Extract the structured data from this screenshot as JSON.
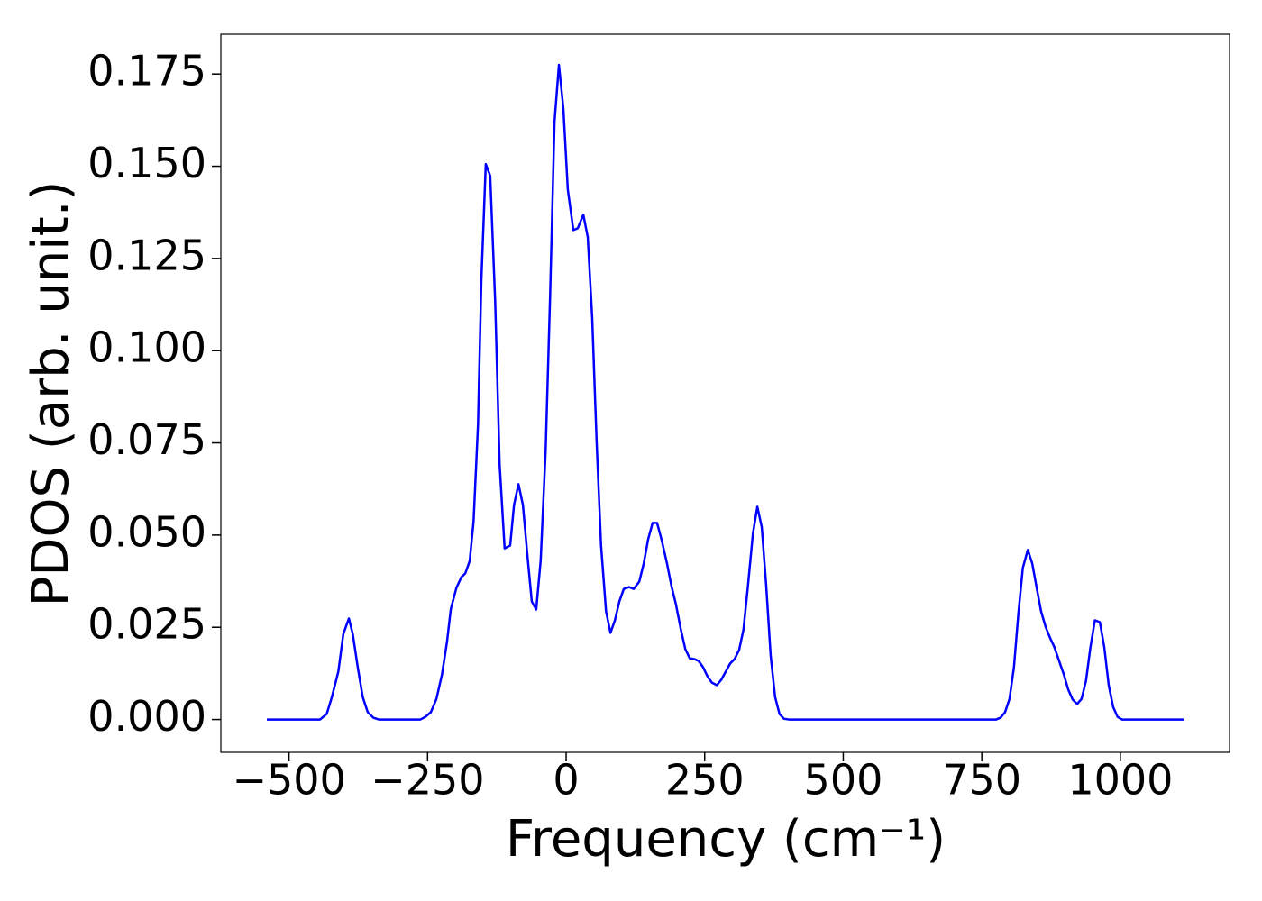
{
  "chart_data": {
    "type": "line",
    "xlabel": "Frequency (cm⁻¹)",
    "ylabel": "PDOS (arb. unit.)",
    "xlim": [
      -623,
      1197
    ],
    "ylim": [
      -0.0089,
      0.1858
    ],
    "xticks": [
      {
        "value": -500,
        "label": "−500"
      },
      {
        "value": -250,
        "label": "−250"
      },
      0,
      250,
      500,
      750,
      1000
    ],
    "yticks": [
      {
        "value": 0,
        "label": "0.000"
      },
      {
        "value": 0.025,
        "label": "0.025"
      },
      {
        "value": 0.05,
        "label": "0.050"
      },
      {
        "value": 0.075,
        "label": "0.075"
      },
      {
        "value": 0.1,
        "label": "0.100"
      },
      {
        "value": 0.125,
        "label": "0.125"
      },
      {
        "value": 0.15,
        "label": "0.150"
      },
      {
        "value": 0.175,
        "label": "0.175"
      }
    ],
    "grid": false,
    "series": [
      {
        "color": "#0000ff",
        "x": [
          -540,
          -444,
          -432,
          -423,
          -411,
          -402,
          -392,
          -385,
          -376,
          -367,
          -358,
          -348,
          -338,
          -263,
          -254,
          -244,
          -234,
          -224,
          -215,
          -208,
          -198,
          -189,
          -182,
          -174,
          -167,
          -159,
          -153,
          -145,
          -137,
          -128,
          -120,
          -111,
          -101,
          -94,
          -86,
          -78,
          -70,
          -62,
          -54,
          -46,
          -37,
          -29,
          -21,
          -13,
          -5,
          3,
          13,
          21,
          31,
          39,
          47,
          55,
          63,
          72,
          80,
          88,
          96,
          104,
          114,
          122,
          132,
          140,
          148,
          156,
          164,
          172,
          182,
          190,
          198,
          207,
          215,
          223,
          231,
          239,
          247,
          255,
          263,
          272,
          280,
          288,
          296,
          304,
          312,
          320,
          328,
          337,
          345,
          353,
          361,
          369,
          377,
          385,
          393,
          402,
          776,
          784,
          792,
          800,
          808,
          816,
          824,
          833,
          841,
          849,
          857,
          865,
          873,
          881,
          889,
          898,
          906,
          914,
          922,
          930,
          938,
          946,
          954,
          963,
          971,
          979,
          987,
          995,
          1003,
          1114
        ],
        "values": [
          0,
          0,
          0.0015,
          0.0059,
          0.013,
          0.0232,
          0.0274,
          0.0232,
          0.0142,
          0.0061,
          0.002,
          0.0005,
          0,
          0,
          0.0007,
          0.002,
          0.0056,
          0.0122,
          0.021,
          0.03,
          0.0357,
          0.0386,
          0.0396,
          0.043,
          0.0538,
          0.08,
          0.119,
          0.1506,
          0.1474,
          0.1132,
          0.0692,
          0.0464,
          0.0472,
          0.0582,
          0.0638,
          0.0582,
          0.0447,
          0.032,
          0.0298,
          0.043,
          0.0728,
          0.1144,
          0.162,
          0.1775,
          0.1657,
          0.1437,
          0.1327,
          0.1332,
          0.1369,
          0.1308,
          0.109,
          0.0753,
          0.0472,
          0.0293,
          0.0235,
          0.0269,
          0.032,
          0.0354,
          0.0359,
          0.0354,
          0.0374,
          0.0423,
          0.0489,
          0.0533,
          0.0533,
          0.0489,
          0.0423,
          0.0362,
          0.0313,
          0.0244,
          0.0191,
          0.0166,
          0.0164,
          0.0159,
          0.0142,
          0.0117,
          0.01,
          0.0093,
          0.0108,
          0.013,
          0.0152,
          0.0164,
          0.0188,
          0.0244,
          0.0362,
          0.0504,
          0.0577,
          0.0521,
          0.0362,
          0.0174,
          0.0061,
          0.0015,
          0.0002,
          0,
          0,
          0.0005,
          0.002,
          0.0056,
          0.0142,
          0.0288,
          0.0411,
          0.046,
          0.0423,
          0.0357,
          0.0293,
          0.0252,
          0.0222,
          0.0196,
          0.0161,
          0.0122,
          0.0081,
          0.0054,
          0.0042,
          0.0056,
          0.0105,
          0.0196,
          0.0269,
          0.0264,
          0.0196,
          0.0093,
          0.0034,
          0.0007,
          0,
          0
        ]
      }
    ]
  }
}
